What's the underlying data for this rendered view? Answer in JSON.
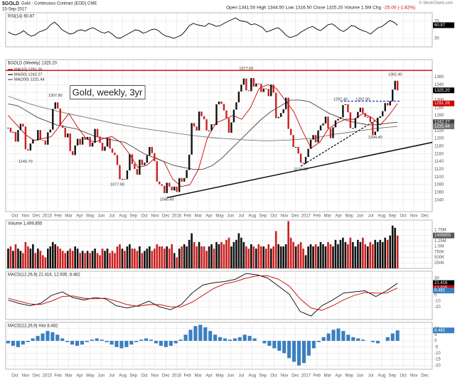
{
  "header": {
    "symbol": "$GOLD",
    "name": "Gold - Continuous Contract (EOD) CME",
    "date": "15-Sep-2017",
    "quote": "Open 1341.50 High 1344.50 Low 1316.50 Close 1325.20 Volume 1.5M Chg",
    "change": "-25.00 (-1.82%)",
    "logo": "© StockCharts.com"
  },
  "chart_data": [
    {
      "type": "line",
      "legend": "RSI(14) 60.87",
      "ylim": [
        10,
        90
      ],
      "yticks": [
        30,
        70
      ],
      "grid": true,
      "series": [
        {
          "color": "#000000",
          "values": [
            45,
            40,
            38,
            42,
            48,
            40,
            35,
            38,
            45,
            48,
            52,
            62,
            68,
            60,
            50,
            45,
            40,
            42,
            48,
            50,
            47,
            52,
            55,
            50,
            45,
            42,
            46,
            40,
            32,
            30,
            35,
            40,
            45,
            50,
            48,
            42,
            45,
            50,
            52,
            48,
            40,
            35,
            33,
            30,
            34,
            38,
            48,
            60,
            65,
            62,
            60,
            58,
            65,
            62,
            58,
            60,
            65,
            70,
            74,
            78,
            72,
            70,
            68,
            62,
            64,
            60,
            55,
            45,
            48,
            52,
            55,
            48,
            38,
            32,
            34,
            38,
            45,
            50,
            55,
            58,
            52,
            48,
            55,
            62,
            64,
            58,
            50,
            46,
            52,
            60,
            58,
            52,
            48,
            45,
            40,
            48,
            55,
            58,
            65,
            72,
            68,
            60.87
          ]
        }
      ],
      "tags": [
        {
          "value": 60.87,
          "label": "60.87",
          "color": "#000000"
        }
      ]
    },
    {
      "type": "candlestick",
      "legend": "$GOLD (Weekly) 1325.20",
      "ylim": [
        1010,
        1405
      ],
      "xlim": [
        -1,
        171
      ],
      "grid": true,
      "up_color": "#111111",
      "down_color": "#cc1f1f",
      "yticks": [
        1360,
        1340,
        1320,
        1300,
        1280,
        1260,
        1240,
        1220,
        1200,
        1180,
        1160,
        1140,
        1120,
        1100,
        1080,
        1060,
        1040
      ],
      "xticks": [
        {
          "value": 2.7,
          "label": "Oct"
        },
        {
          "value": 7.0,
          "label": "Nov"
        },
        {
          "value": 11.4,
          "label": "Dec"
        },
        {
          "value": 15.7,
          "label": "2015"
        },
        {
          "value": 20.1,
          "label": "Feb"
        },
        {
          "value": 24.4,
          "label": "Mar"
        },
        {
          "value": 28.8,
          "label": "Apr"
        },
        {
          "value": 33.1,
          "label": "May"
        },
        {
          "value": 37.5,
          "label": "Jun"
        },
        {
          "value": 41.8,
          "label": "Jul"
        },
        {
          "value": 46.2,
          "label": "Aug"
        },
        {
          "value": 50.5,
          "label": "Sep"
        },
        {
          "value": 54.9,
          "label": "Oct"
        },
        {
          "value": 59.2,
          "label": "Nov"
        },
        {
          "value": 63.6,
          "label": "Dec"
        },
        {
          "value": 67.9,
          "label": "2016"
        },
        {
          "value": 72.3,
          "label": "Feb"
        },
        {
          "value": 76.6,
          "label": "Mar"
        },
        {
          "value": 81.0,
          "label": "Apr"
        },
        {
          "value": 85.3,
          "label": "May"
        },
        {
          "value": 89.7,
          "label": "Jun"
        },
        {
          "value": 94.0,
          "label": "Jul"
        },
        {
          "value": 98.4,
          "label": "Aug"
        },
        {
          "value": 102.7,
          "label": "Sep"
        },
        {
          "value": 107.1,
          "label": "Oct"
        },
        {
          "value": 111.4,
          "label": "Nov"
        },
        {
          "value": 115.8,
          "label": "Dec"
        },
        {
          "value": 120.1,
          "label": "2017"
        },
        {
          "value": 124.5,
          "label": "Feb"
        },
        {
          "value": 128.8,
          "label": "Mar"
        },
        {
          "value": 133.2,
          "label": "Apr"
        },
        {
          "value": 137.5,
          "label": "May"
        },
        {
          "value": 141.9,
          "label": "Jun"
        },
        {
          "value": 146.2,
          "label": "Jul"
        },
        {
          "value": 150.6,
          "label": "Aug"
        },
        {
          "value": 154.9,
          "label": "Sep"
        },
        {
          "value": 159.3,
          "label": "Oct"
        },
        {
          "value": 163.6,
          "label": "Nov"
        },
        {
          "value": 168.0,
          "label": "Dec"
        }
      ],
      "close": [
        1228,
        1216,
        1217,
        1192,
        1222,
        1238,
        1231,
        1172,
        1169,
        1187,
        1197,
        1195,
        1222,
        1196,
        1195,
        1184,
        1216,
        1223,
        1277,
        1294,
        1278,
        1234,
        1228,
        1203,
        1213,
        1167,
        1157,
        1182,
        1199,
        1184,
        1204,
        1197,
        1204,
        1179,
        1189,
        1225,
        1205,
        1189,
        1168,
        1179,
        1201,
        1174,
        1163,
        1157,
        1131,
        1094,
        1095,
        1094,
        1117,
        1159,
        1134,
        1121,
        1106,
        1145,
        1131,
        1137,
        1156,
        1178,
        1162,
        1141,
        1088,
        1081,
        1077,
        1058,
        1085,
        1075,
        1065,
        1075,
        1061,
        1097,
        1088,
        1097,
        1118,
        1158,
        1240,
        1231,
        1221,
        1270,
        1258,
        1250,
        1221,
        1221,
        1237,
        1235,
        1289,
        1296,
        1290,
        1273,
        1253,
        1215,
        1242,
        1275,
        1294,
        1322,
        1340,
        1356,
        1325,
        1323,
        1357,
        1335,
        1343,
        1342,
        1321,
        1330,
        1329,
        1310,
        1340,
        1319,
        1253,
        1256,
        1266,
        1276,
        1306,
        1225,
        1209,
        1178,
        1178,
        1161,
        1137,
        1135,
        1152,
        1173,
        1197,
        1209,
        1190,
        1221,
        1234,
        1239,
        1257,
        1226,
        1201,
        1229,
        1247,
        1251,
        1255,
        1287,
        1289,
        1268,
        1227,
        1227,
        1253,
        1269,
        1280,
        1266,
        1256,
        1256,
        1243,
        1209,
        1218,
        1254,
        1258,
        1271,
        1292,
        1286,
        1297,
        1327,
        1350,
        1325.2
      ],
      "series": [
        {
          "name": "MA(10) 1291.26",
          "color": "#cc0000",
          "values": [
            1260,
            1235,
            1210,
            1195,
            1200,
            1205,
            1235,
            1265,
            1230,
            1200,
            1190,
            1200,
            1205,
            1190,
            1160,
            1125,
            1130,
            1150,
            1140,
            1095,
            1075,
            1080,
            1120,
            1200,
            1240,
            1250,
            1260,
            1250,
            1280,
            1330,
            1340,
            1330,
            1300,
            1270,
            1220,
            1175,
            1190,
            1225,
            1240,
            1250,
            1250,
            1265,
            1255,
            1235,
            1260,
            1291.26
          ]
        },
        {
          "name": "MA(50) 1242.27",
          "color": "#444444",
          "values": [
            1290,
            1285,
            1270,
            1255,
            1245,
            1235,
            1230,
            1225,
            1215,
            1205,
            1200,
            1195,
            1190,
            1175,
            1160,
            1150,
            1140,
            1130,
            1125,
            1120,
            1120,
            1130,
            1150,
            1175,
            1200,
            1225,
            1250,
            1270,
            1285,
            1300,
            1300,
            1295,
            1280,
            1265,
            1255,
            1245,
            1240,
            1235,
            1236,
            1240,
            1242.27
          ]
        },
        {
          "name": "MA(200) 1231.44",
          "color": "#777777",
          "values": [
            1310,
            1300,
            1290,
            1282,
            1275,
            1268,
            1262,
            1256,
            1250,
            1244,
            1238,
            1233,
            1228,
            1224,
            1220,
            1216,
            1212,
            1208,
            1205,
            1202,
            1200,
            1198,
            1196,
            1195,
            1194,
            1195,
            1196,
            1198,
            1200,
            1205,
            1210,
            1214,
            1218,
            1222,
            1226,
            1229,
            1231.44
          ]
        }
      ],
      "tags": [
        {
          "value": 1325.2,
          "label": "1325.20",
          "color": "#000000"
        },
        {
          "value": 1291.26,
          "label": "1291.26",
          "color": "#cc0000"
        },
        {
          "value": 1242.27,
          "label": "1242.27",
          "color": "#444444"
        },
        {
          "value": 1231.44,
          "label": "1231.44",
          "color": "#777777"
        }
      ],
      "annotations": [
        {
          "text": "Gold, weekly, 3yr",
          "x": 40,
          "y": 1318,
          "boxed": true
        },
        {
          "text": "1307.80",
          "x": 19,
          "y": 1312
        },
        {
          "text": "1142.70",
          "x": 7,
          "y": 1140
        },
        {
          "text": "1077.90",
          "x": 44,
          "y": 1080
        },
        {
          "text": "1045.40",
          "x": 64,
          "y": 1041
        },
        {
          "text": "1377.50",
          "x": 96,
          "y": 1382
        },
        {
          "text": "1124.30",
          "x": 118,
          "y": 1120
        },
        {
          "text": "1297.40",
          "x": 134,
          "y": 1302
        },
        {
          "text": "1297.90",
          "x": 143,
          "y": 1302
        },
        {
          "text": "1204.40",
          "x": 148,
          "y": 1203
        },
        {
          "text": "1362.40",
          "x": 156,
          "y": 1366
        }
      ],
      "trendlines": [
        {
          "from": [
            -1,
            1377
          ],
          "to": [
            171,
            1377
          ],
          "color": "#cc0000",
          "dashed": false
        },
        {
          "from": [
            64,
            1046
          ],
          "to": [
            171,
            1190
          ],
          "color": "#000000",
          "dashed": false
        },
        {
          "from": [
            134,
            1297
          ],
          "to": [
            158,
            1297
          ],
          "color": "#1a3fcc",
          "dashed": true
        },
        {
          "from": [
            118,
            1128
          ],
          "to": [
            150,
            1255
          ],
          "color": "#000000",
          "dashed": true
        }
      ]
    },
    {
      "type": "bar",
      "legend": "Volume 1,499,855",
      "ylim": [
        0,
        2.2
      ],
      "grid": true,
      "yticks": [
        {
          "value": 1.75,
          "label": "1.75M"
        },
        {
          "value": 1.5,
          "label": "1.5M"
        },
        {
          "value": 1.25,
          "label": "1.25M"
        },
        {
          "value": 1.0,
          "label": "1.0M"
        },
        {
          "value": 0.75,
          "label": "750K"
        },
        {
          "value": 0.5,
          "label": "500K"
        },
        {
          "value": 0.25,
          "label": "250K"
        }
      ],
      "values": [
        0.9,
        1.0,
        0.8,
        1.1,
        0.9,
        0.8,
        0.7,
        1.2,
        1.0,
        0.9,
        1.1,
        0.7,
        0.9,
        0.8,
        0.6,
        0.5,
        0.9,
        1.0,
        1.2,
        1.1,
        1.0,
        0.9,
        0.8,
        0.7,
        0.8,
        0.9,
        0.8,
        1.0,
        0.9,
        0.7,
        0.8,
        0.7,
        0.8,
        0.7,
        0.8,
        0.9,
        0.7,
        0.6,
        0.9,
        0.8,
        0.9,
        0.7,
        0.8,
        0.7,
        1.0,
        1.1,
        0.9,
        0.8,
        1.0,
        1.1,
        0.9,
        0.9,
        0.8,
        1.0,
        0.7,
        0.8,
        0.9,
        1.0,
        0.8,
        0.9,
        1.1,
        1.0,
        1.0,
        0.9,
        1.0,
        0.9,
        1.1,
        0.7,
        0.5,
        0.9,
        1.0,
        1.1,
        1.0,
        1.3,
        1.6,
        1.2,
        1.0,
        1.2,
        1.0,
        1.0,
        0.8,
        1.0,
        1.1,
        0.9,
        1.2,
        1.1,
        1.2,
        1.1,
        1.3,
        1.4,
        1.0,
        1.2,
        1.3,
        1.6,
        1.4,
        1.2,
        1.0,
        0.9,
        1.1,
        1.0,
        0.9,
        1.1,
        1.0,
        1.0,
        0.9,
        1.1,
        0.9,
        1.0,
        1.7,
        1.1,
        1.0,
        1.0,
        1.1,
        2.15,
        1.4,
        1.2,
        1.0,
        1.1,
        1.2,
        0.9,
        0.6,
        1.0,
        1.1,
        1.0,
        1.1,
        1.0,
        1.2,
        1.1,
        1.0,
        1.2,
        1.1,
        1.0,
        1.3,
        1.1,
        1.3,
        1.4,
        1.2,
        1.1,
        1.4,
        1.2,
        1.0,
        1.3,
        1.2,
        1.4,
        1.1,
        1.0,
        1.2,
        1.1,
        1.3,
        1.2,
        1.3,
        1.2,
        1.4,
        1.3,
        1.5,
        1.95,
        1.85,
        1.499855
      ],
      "tags": [
        {
          "value": 1.499855,
          "label": "1499855",
          "color": "#555555"
        }
      ]
    },
    {
      "type": "line",
      "legend": "MACD(12,26,9) 21.416, 12.935, 8.482",
      "ylim": [
        -42,
        42
      ],
      "yticks": [
        30,
        20,
        10,
        0,
        -10,
        -20
      ],
      "grid": true,
      "series": [
        {
          "color": "#000000",
          "values": [
            -8,
            -14,
            -18,
            -14,
            0,
            6,
            -4,
            -8,
            -4,
            -6,
            -18,
            -22,
            -18,
            -10,
            -20,
            -25,
            -16,
            4,
            18,
            22,
            24,
            28,
            38,
            36,
            30,
            16,
            2,
            -28,
            -36,
            -18,
            -8,
            4,
            6,
            8,
            -2,
            8,
            21.416
          ]
        },
        {
          "color": "#cc0000",
          "values": [
            -5,
            -10,
            -15,
            -16,
            -10,
            -2,
            -1,
            -5,
            -6,
            -5,
            -10,
            -16,
            -19,
            -16,
            -16,
            -20,
            -20,
            -12,
            0,
            12,
            20,
            24,
            30,
            34,
            34,
            28,
            16,
            -6,
            -22,
            -26,
            -18,
            -8,
            0,
            5,
            4,
            4,
            12.935
          ]
        }
      ],
      "tags": [
        {
          "value": 21.416,
          "label": "21.416",
          "color": "#000000"
        },
        {
          "value": 12.935,
          "label": "12.935",
          "color": "#cc0000"
        },
        {
          "value": 8.482,
          "label": "8.482",
          "color": "#3a7fc1"
        }
      ]
    },
    {
      "type": "bar",
      "legend": "MACD(12,26,9) Hist 8.482",
      "ylim": [
        -23,
        15
      ],
      "yticks": [
        10,
        5,
        0,
        -5,
        -10,
        -15,
        -20
      ],
      "grid": true,
      "color": "#3a7fc1",
      "values": [
        -2,
        -4,
        -5,
        -3,
        -1,
        2,
        4,
        6,
        8,
        7,
        5,
        2,
        -1,
        -3,
        -4,
        -3,
        -1,
        1,
        2,
        1,
        -1,
        -3,
        -5,
        -6,
        -5,
        -3,
        -1,
        1,
        2,
        1,
        -2,
        -4,
        -5,
        -4,
        -2,
        1,
        5,
        9,
        12,
        13,
        11,
        8,
        5,
        3,
        2,
        1,
        2,
        3,
        5,
        4,
        2,
        0,
        -2,
        -4,
        -6,
        -8,
        -10,
        -14,
        -17,
        -20,
        -18,
        -12,
        -6,
        -1,
        3,
        6,
        9,
        10,
        8,
        5,
        3,
        2,
        1,
        0,
        -1,
        -2,
        0,
        3,
        6,
        8.482
      ],
      "tags": [
        {
          "value": 8.482,
          "label": "8.482",
          "color": "#3a7fc1"
        }
      ]
    }
  ]
}
